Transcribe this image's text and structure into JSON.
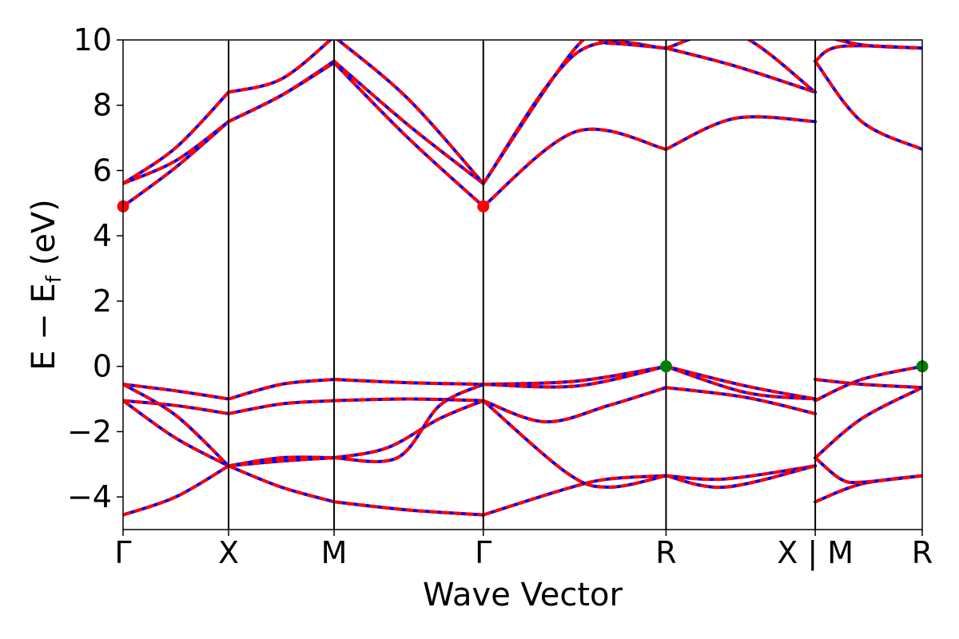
{
  "chart_data": {
    "type": "line",
    "xlabel": "Wave Vector",
    "ylabel": "E − E_f (eV)",
    "ylabel_main": "E − E",
    "ylabel_sub": "f",
    "ylabel_unit": " (eV)",
    "ylim": [
      -5,
      10
    ],
    "yticks": [
      -4,
      -2,
      0,
      2,
      4,
      6,
      8,
      10
    ],
    "ytick_labels": [
      "−4",
      "−2",
      "0",
      "2",
      "4",
      "6",
      "8",
      "10"
    ],
    "kpath": [
      {
        "label": "Γ",
        "x": 0.0
      },
      {
        "label": "X",
        "x": 1.0
      },
      {
        "label": "M",
        "x": 2.0
      },
      {
        "label": "Γ",
        "x": 3.414
      },
      {
        "label": "R",
        "x": 5.146
      },
      {
        "label": "X | M",
        "x": 6.56
      },
      {
        "label": "R",
        "x": 7.574
      }
    ],
    "xlim": [
      0,
      7.574
    ],
    "grid": false,
    "line_colors": {
      "primary": "#ff0000",
      "overlay": "#0000ff"
    },
    "markers": [
      {
        "name": "cbm",
        "x": 0.0,
        "y": 4.9,
        "color": "#ff0000"
      },
      {
        "name": "cbm",
        "x": 3.414,
        "y": 4.9,
        "color": "#ff0000"
      },
      {
        "name": "vbm",
        "x": 5.146,
        "y": 0.0,
        "color": "#008000"
      },
      {
        "name": "vbm",
        "x": 7.574,
        "y": 0.0,
        "color": "#008000"
      }
    ],
    "bands": [
      {
        "segments": [
          [
            [
              0,
              -4.55
            ],
            [
              0.5,
              -4.0
            ],
            [
              1,
              -3.05
            ]
          ],
          [
            [
              1,
              -3.05
            ],
            [
              1.5,
              -3.7
            ],
            [
              2,
              -4.15
            ]
          ],
          [
            [
              2,
              -4.15
            ],
            [
              2.7,
              -4.4
            ],
            [
              3.414,
              -4.55
            ]
          ],
          [
            [
              3.414,
              -4.55
            ],
            [
              4.2,
              -3.75
            ],
            [
              4.6,
              -3.45
            ],
            [
              5.146,
              -3.35
            ]
          ],
          [
            [
              5.146,
              -3.35
            ],
            [
              5.7,
              -3.45
            ],
            [
              6.56,
              -3.05
            ]
          ],
          [
            [
              6.56,
              -4.15
            ],
            [
              7.0,
              -3.6
            ],
            [
              7.574,
              -3.35
            ]
          ]
        ]
      },
      {
        "segments": [
          [
            [
              0,
              -1.05
            ],
            [
              0.5,
              -2.2
            ],
            [
              1,
              -3.05
            ]
          ],
          [
            [
              1,
              -3.05
            ],
            [
              1.5,
              -2.8
            ],
            [
              2,
              -2.8
            ]
          ],
          [
            [
              2,
              -2.8
            ],
            [
              2.5,
              -2.5
            ],
            [
              3.0,
              -1.6
            ],
            [
              3.414,
              -1.05
            ]
          ],
          [
            [
              3.414,
              -1.05
            ],
            [
              4.2,
              -3.25
            ],
            [
              4.6,
              -3.7
            ],
            [
              5.146,
              -3.35
            ]
          ],
          [
            [
              5.146,
              -3.35
            ],
            [
              5.7,
              -3.7
            ],
            [
              6.56,
              -3.05
            ]
          ],
          [
            [
              6.56,
              -2.8
            ],
            [
              6.8,
              -3.45
            ],
            [
              7.0,
              -3.55
            ],
            [
              7.574,
              -3.35
            ]
          ]
        ]
      },
      {
        "segments": [
          [
            [
              0,
              -1.05
            ],
            [
              0.5,
              -1.2
            ],
            [
              1,
              -1.45
            ]
          ],
          [
            [
              1,
              -1.45
            ],
            [
              1.5,
              -1.15
            ],
            [
              2,
              -1.05
            ]
          ],
          [
            [
              2,
              -1.05
            ],
            [
              2.7,
              -1.0
            ],
            [
              3.414,
              -1.05
            ]
          ],
          [
            [
              3.414,
              -1.05
            ],
            [
              4.0,
              -1.7
            ],
            [
              4.6,
              -1.2
            ],
            [
              5.146,
              -0.65
            ]
          ],
          [
            [
              5.146,
              -0.65
            ],
            [
              5.9,
              -0.95
            ],
            [
              6.56,
              -1.45
            ]
          ],
          [
            [
              6.56,
              -2.8
            ],
            [
              7.0,
              -1.6
            ],
            [
              7.574,
              -0.65
            ]
          ]
        ]
      },
      {
        "segments": [
          [
            [
              0,
              -0.55
            ],
            [
              0.5,
              -0.75
            ],
            [
              1,
              -1.0
            ]
          ],
          [
            [
              1,
              -1.0
            ],
            [
              1.5,
              -0.55
            ],
            [
              2,
              -0.4
            ]
          ],
          [
            [
              2,
              -0.4
            ],
            [
              2.7,
              -0.5
            ],
            [
              3.414,
              -0.55
            ]
          ],
          [
            [
              3.414,
              -0.55
            ],
            [
              4.3,
              -0.45
            ],
            [
              5.146,
              0.0
            ]
          ],
          [
            [
              5.146,
              0.0
            ],
            [
              5.9,
              -0.6
            ],
            [
              6.56,
              -1.0
            ]
          ],
          [
            [
              6.56,
              -0.4
            ],
            [
              7.0,
              -0.55
            ],
            [
              7.574,
              -0.65
            ]
          ]
        ]
      },
      {
        "segments": [
          [
            [
              0,
              -0.55
            ],
            [
              0.5,
              -1.5
            ],
            [
              1,
              -3.05
            ]
          ],
          [
            [
              1,
              -3.05
            ],
            [
              1.5,
              -2.9
            ],
            [
              2,
              -2.8
            ]
          ],
          [
            [
              2,
              -2.8
            ],
            [
              2.6,
              -2.8
            ],
            [
              3.0,
              -1.2
            ],
            [
              3.414,
              -0.55
            ]
          ],
          [
            [
              3.414,
              -0.55
            ],
            [
              4.3,
              -0.6
            ],
            [
              5.146,
              0.0
            ]
          ],
          [
            [
              5.146,
              0.0
            ],
            [
              5.9,
              -0.8
            ],
            [
              6.56,
              -1.0
            ]
          ],
          [
            [
              6.56,
              -1.05
            ],
            [
              7.0,
              -0.4
            ],
            [
              7.574,
              0.0
            ]
          ]
        ]
      },
      {
        "segments": [
          [
            [
              0,
              4.9
            ],
            [
              0.5,
              6.1
            ],
            [
              1,
              7.5
            ]
          ],
          [
            [
              1,
              7.5
            ],
            [
              1.5,
              8.3
            ],
            [
              2,
              9.3
            ]
          ],
          [
            [
              2,
              9.3
            ],
            [
              2.7,
              7.0
            ],
            [
              3.414,
              4.9
            ]
          ],
          [
            [
              3.414,
              4.9
            ],
            [
              4.3,
              7.2
            ],
            [
              5.146,
              6.65
            ]
          ],
          [
            [
              5.146,
              6.65
            ],
            [
              5.8,
              7.6
            ],
            [
              6.56,
              7.5
            ]
          ],
          [
            [
              6.56,
              9.35
            ],
            [
              7.0,
              7.5
            ],
            [
              7.574,
              6.65
            ]
          ]
        ]
      },
      {
        "segments": [
          [
            [
              0,
              5.6
            ],
            [
              0.5,
              6.3
            ],
            [
              1,
              7.5
            ]
          ],
          [
            [
              1,
              7.5
            ],
            [
              1.5,
              8.3
            ],
            [
              2,
              9.35
            ]
          ],
          [
            [
              2,
              9.35
            ],
            [
              2.7,
              7.4
            ],
            [
              3.414,
              5.6
            ]
          ],
          [
            [
              3.414,
              5.6
            ],
            [
              4.3,
              9.6
            ],
            [
              5.146,
              9.75
            ]
          ],
          [
            [
              5.146,
              9.75
            ],
            [
              5.8,
              9.2
            ],
            [
              6.56,
              8.4
            ]
          ],
          [
            [
              6.56,
              9.35
            ],
            [
              6.8,
              9.8
            ],
            [
              7.574,
              9.75
            ]
          ]
        ]
      },
      {
        "segments": [
          [
            [
              0,
              5.6
            ],
            [
              0.5,
              6.7
            ],
            [
              1,
              8.4
            ]
          ],
          [
            [
              1,
              8.4
            ],
            [
              1.5,
              8.8
            ],
            [
              2,
              10.1
            ]
          ],
          [
            [
              2,
              10.1
            ],
            [
              2.7,
              8.2
            ],
            [
              3.414,
              5.6
            ]
          ],
          [
            [
              3.414,
              5.6
            ],
            [
              4.3,
              9.8
            ],
            [
              4.6,
              9.9
            ],
            [
              5.146,
              9.75
            ]
          ],
          [
            [
              5.146,
              9.75
            ],
            [
              5.8,
              10.2
            ],
            [
              6.56,
              8.4
            ]
          ],
          [
            [
              6.56,
              10.2
            ],
            [
              7.0,
              9.85
            ],
            [
              7.574,
              9.75
            ]
          ]
        ]
      }
    ]
  }
}
